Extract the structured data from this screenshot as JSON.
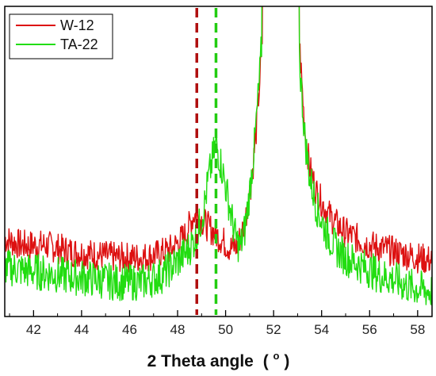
{
  "chart_data": {
    "type": "line",
    "title": "",
    "xlabel": "2 Theta angle",
    "xlabel_unit_base": "(",
    "xlabel_unit_sup": "o",
    "xlabel_unit_close": ")",
    "ylabel": "",
    "xlim": [
      40.8,
      58.6
    ],
    "ylim": [
      0,
      100
    ],
    "y_ticks_shown": false,
    "grid": false,
    "legend_position": "top-left",
    "x_ticks": [
      42,
      44,
      46,
      48,
      50,
      52,
      54,
      56,
      58
    ],
    "x_tick_labels": [
      "42",
      "44",
      "46",
      "48",
      "50",
      "52",
      "54",
      "56",
      "58"
    ],
    "series": [
      {
        "name": "W-12",
        "color": "#dd1111",
        "points": [
          [
            40.8,
            25
          ],
          [
            41.5,
            23
          ],
          [
            42.5,
            23
          ],
          [
            43.5,
            21
          ],
          [
            44.5,
            20
          ],
          [
            45.5,
            19
          ],
          [
            46.5,
            19
          ],
          [
            47.2,
            20
          ],
          [
            47.8,
            22
          ],
          [
            48.3,
            26
          ],
          [
            48.7,
            33
          ],
          [
            49.0,
            31
          ],
          [
            49.4,
            28
          ],
          [
            49.8,
            25
          ],
          [
            50.2,
            22
          ],
          [
            50.5,
            23
          ],
          [
            50.8,
            30
          ],
          [
            51.1,
            45
          ],
          [
            51.3,
            62
          ],
          [
            51.5,
            85
          ],
          [
            51.6,
            100
          ],
          [
            53.0,
            100
          ],
          [
            53.1,
            85
          ],
          [
            53.3,
            60
          ],
          [
            53.5,
            48
          ],
          [
            53.8,
            40
          ],
          [
            54.2,
            34
          ],
          [
            54.6,
            30
          ],
          [
            55.0,
            27
          ],
          [
            55.5,
            25
          ],
          [
            56.0,
            23
          ],
          [
            56.5,
            22
          ],
          [
            57.0,
            21
          ],
          [
            57.5,
            20
          ],
          [
            58.0,
            19
          ],
          [
            58.6,
            18
          ]
        ]
      },
      {
        "name": "TA-22",
        "color": "#22dd11",
        "points": [
          [
            40.8,
            16
          ],
          [
            41.5,
            15
          ],
          [
            42.5,
            14
          ],
          [
            43.5,
            13
          ],
          [
            44.5,
            12
          ],
          [
            45.5,
            11
          ],
          [
            46.5,
            11
          ],
          [
            47.3,
            13
          ],
          [
            47.9,
            17
          ],
          [
            48.4,
            21
          ],
          [
            48.8,
            26
          ],
          [
            49.1,
            35
          ],
          [
            49.3,
            45
          ],
          [
            49.6,
            56
          ],
          [
            49.9,
            46
          ],
          [
            50.2,
            34
          ],
          [
            50.4,
            26
          ],
          [
            50.6,
            22
          ],
          [
            50.8,
            28
          ],
          [
            51.0,
            40
          ],
          [
            51.2,
            55
          ],
          [
            51.4,
            75
          ],
          [
            51.6,
            100
          ],
          [
            53.0,
            100
          ],
          [
            53.1,
            80
          ],
          [
            53.3,
            58
          ],
          [
            53.5,
            45
          ],
          [
            53.8,
            35
          ],
          [
            54.2,
            27
          ],
          [
            54.6,
            22
          ],
          [
            55.0,
            19
          ],
          [
            55.5,
            17
          ],
          [
            56.0,
            15
          ],
          [
            56.5,
            13
          ],
          [
            57.0,
            12
          ],
          [
            57.5,
            10
          ],
          [
            58.0,
            9
          ],
          [
            58.6,
            8
          ]
        ]
      }
    ],
    "reference_lines": [
      {
        "x": 48.8,
        "color": "#b01010"
      },
      {
        "x": 49.6,
        "color": "#22cc11"
      }
    ]
  }
}
